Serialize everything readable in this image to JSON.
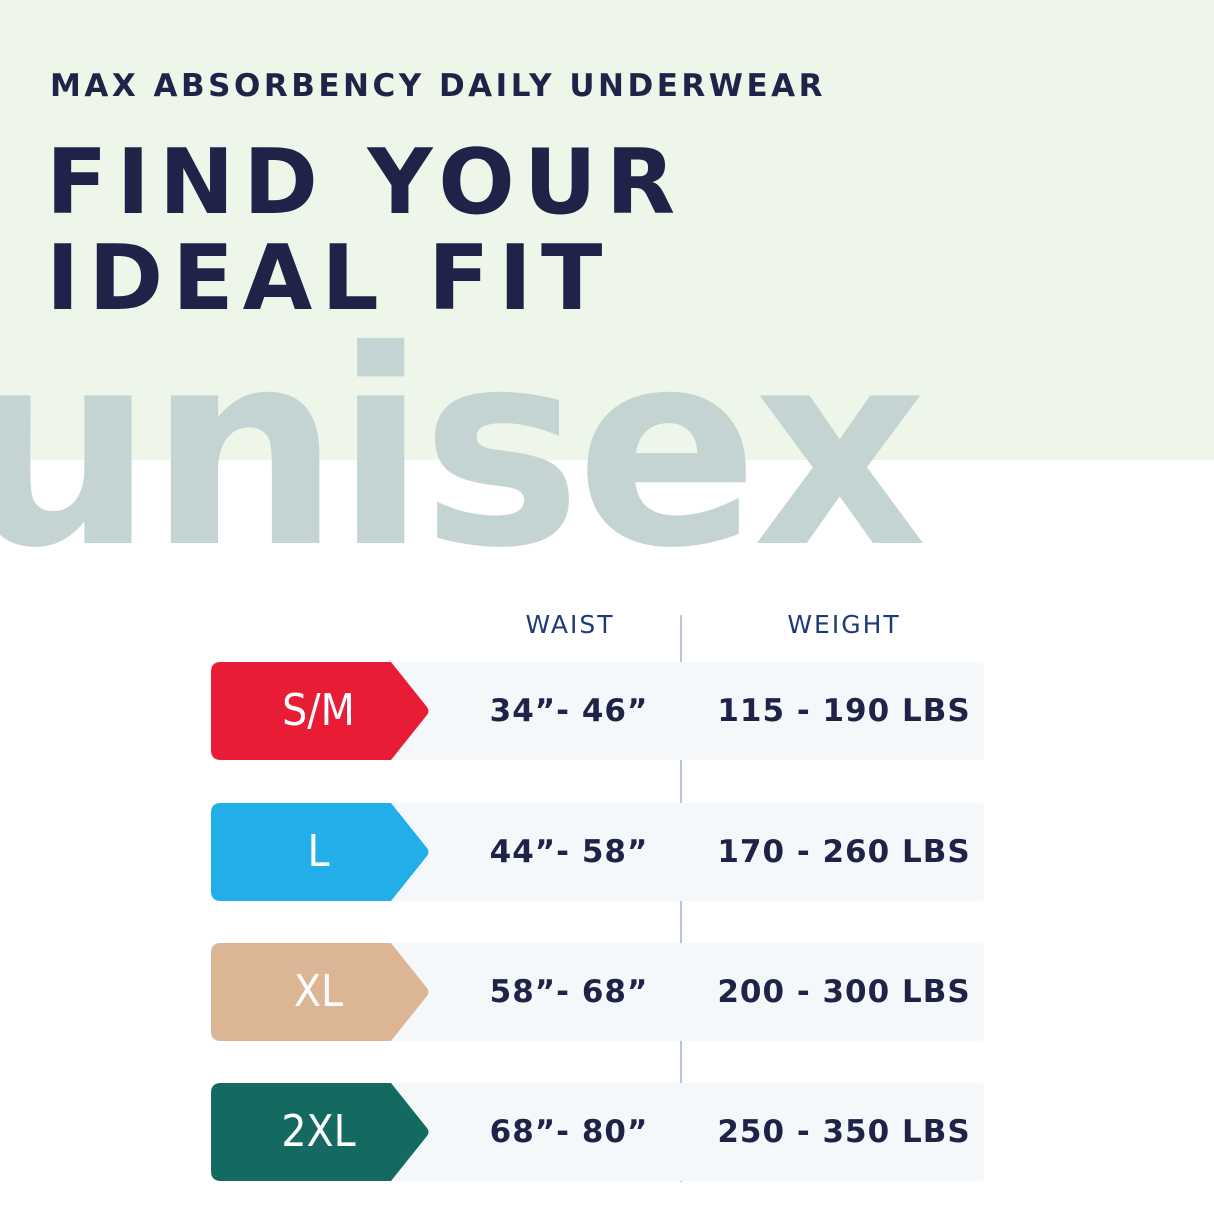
{
  "header": {
    "eyebrow": "MAX ABSORBENCY DAILY UNDERWEAR",
    "title_line1": "FIND YOUR",
    "title_line2": "IDEAL FIT",
    "watermark": "unisex"
  },
  "table": {
    "columns": [
      "WAIST",
      "WEIGHT"
    ],
    "rows": [
      {
        "size": "S/M",
        "waist": "34”- 46”",
        "weight": "115 - 190 LBS",
        "color": "#e91c36"
      },
      {
        "size": "L",
        "waist": "44”- 58”",
        "weight": "170 - 260 LBS",
        "color": "#22aee8"
      },
      {
        "size": "XL",
        "waist": "58”- 68”",
        "weight": "200 - 300 LBS",
        "color": "#dcb594"
      },
      {
        "size": "2XL",
        "waist": "68”- 80”",
        "weight": "250 - 350 LBS",
        "color": "#146960"
      }
    ]
  }
}
